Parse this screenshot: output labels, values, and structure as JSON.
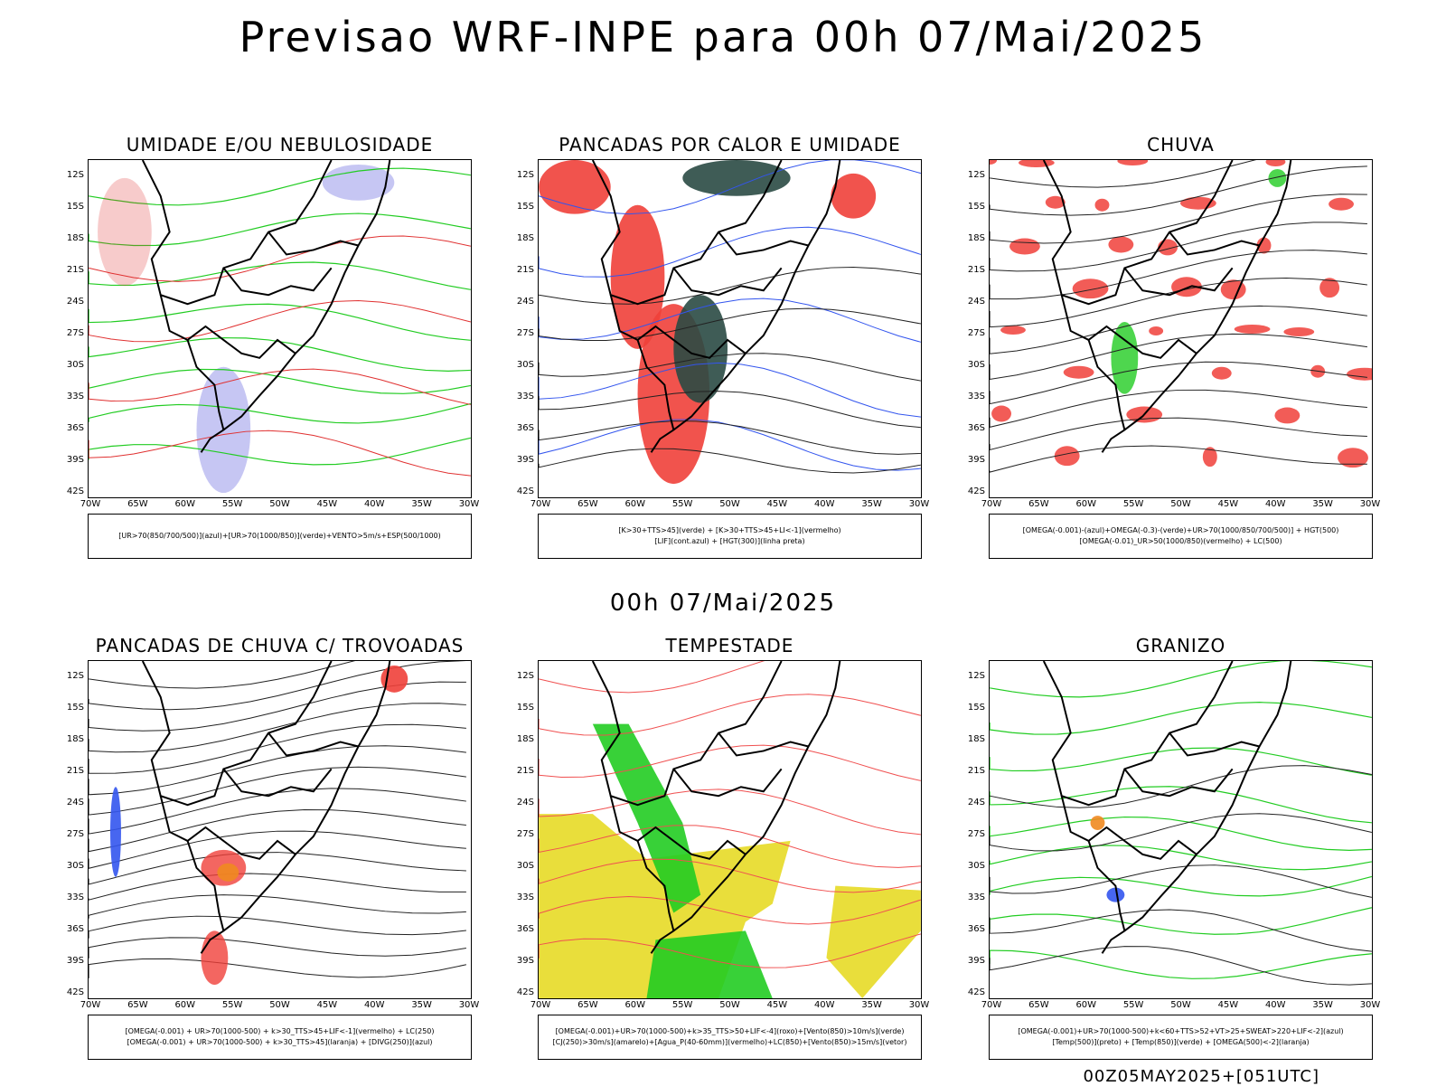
{
  "main_title": "Previsao WRF-INPE  para 00h 07/Mai/2025",
  "mid_title": "00h 07/Mai/2025",
  "footer": "00Z05MAY2025+[051UTC]",
  "lat_labels": [
    "12S",
    "15S",
    "18S",
    "21S",
    "24S",
    "27S",
    "30S",
    "33S",
    "36S",
    "39S",
    "42S"
  ],
  "lon_labels": [
    "70W",
    "65W",
    "60W",
    "55W",
    "50W",
    "45W",
    "40W",
    "35W",
    "30W"
  ],
  "colors": {
    "red": "#f0403a",
    "green": "#22cc22",
    "blue": "#3355ee",
    "lavender": "#b8b8f0",
    "darkteal": "#2a4a44",
    "yellow": "#e8dc30",
    "orange": "#f08a20"
  },
  "panels": [
    {
      "title": "UMIDADE E/OU NEBULOSIDADE",
      "legend": [
        "[UR>70(850/700/500)](azul)+[UR>70(1000/850)](verde)+VENTO>5m/s+ESP(500/1000)"
      ]
    },
    {
      "title": "PANCADAS POR CALOR E UMIDADE",
      "legend": [
        "[K>30+TTS>45](verde)  +  [K>30+TTS>45+LI<-1](vermelho)",
        "[LIF](cont.azul)  +  [HGT(300)](linha preta)"
      ]
    },
    {
      "title": "CHUVA",
      "legend": [
        "[OMEGA(-0.001)-(azul)+OMEGA(-0.3)-(verde)+UR>70(1000/850/700/500)]  +  HGT(500)",
        "[OMEGA(-0.01)_UR>50(1000/850)(vermelho)  +  LC(500)"
      ]
    },
    {
      "title": "PANCADAS DE CHUVA C/ TROVOADAS",
      "legend": [
        "[OMEGA(-0.001)  +  UR>70(1000-500)  +  k>30_TTS>45+LIF<-1](vermelho)  +  LC(250)",
        "[OMEGA(-0.001)  +  UR>70(1000-500)  +  k>30_TTS>45](laranja)  +  [DIVG(250)](azul)"
      ]
    },
    {
      "title": "TEMPESTADE",
      "legend": [
        "[OMEGA(-0.001)+UR>70(1000-500)+k>35_TTS>50+LIF<-4](roxo)+[Vento(850)>10m/s](verde)",
        "[CJ(250)>30m/s](amarelo)+[Agua_P(40-60mm)](vermelho)+LC(850)+[Vento(850)>15m/s](vetor)"
      ]
    },
    {
      "title": "GRANIZO",
      "legend": [
        "[OMEGA(-0.001)+UR>70(1000-500)+k<60+TTS>52+VT>25+SWEAT>220+LIF<-2](azul)",
        "[Temp(500)](preto)  +  [Temp(850)](verde)  +  [OMEGA(500)<-2](laranja)"
      ]
    }
  ]
}
